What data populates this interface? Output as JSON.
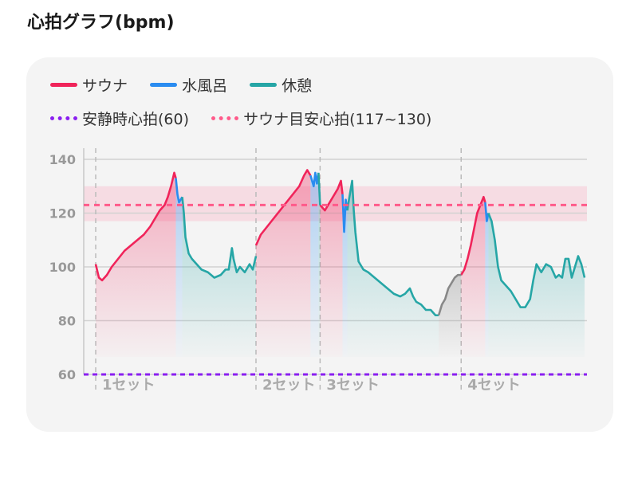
{
  "title": "心拍グラフ(bpm)",
  "legend": {
    "row1": [
      {
        "label": "サウナ",
        "color": "#f0245a"
      },
      {
        "label": "水風呂",
        "color": "#2a8cf0"
      },
      {
        "label": "休憩",
        "color": "#26a6a6"
      }
    ],
    "row2": [
      {
        "label": "安静時心拍(60)",
        "color": "#8a1ff0"
      },
      {
        "label": "サウナ目安心拍(117~130)",
        "color": "#ff5a8a"
      }
    ]
  },
  "chart_data": {
    "type": "line",
    "ylim": [
      60,
      140
    ],
    "yticks": [
      140,
      120,
      100,
      80,
      60
    ],
    "resting_hr": 60,
    "sauna_target_band": [
      117,
      130
    ],
    "sauna_target_line": 123,
    "grid": true,
    "set_labels": [
      "1セット",
      "2セット",
      "3セット",
      "4セット"
    ],
    "series": [
      {
        "name": "サウナ",
        "color": "#f0245a",
        "segments": [
          [
            [
              0,
              101
            ],
            [
              2,
              96
            ],
            [
              4,
              95
            ],
            [
              7,
              97
            ],
            [
              10,
              100
            ],
            [
              14,
              103
            ],
            [
              18,
              106
            ],
            [
              22,
              108
            ],
            [
              26,
              110
            ],
            [
              30,
              112
            ],
            [
              34,
              115
            ],
            [
              37,
              118
            ],
            [
              40,
              121
            ],
            [
              43,
              123
            ],
            [
              45,
              126
            ],
            [
              47,
              130
            ],
            [
              49,
              135
            ],
            [
              50,
              133
            ]
          ],
          [
            [
              100,
              108
            ],
            [
              103,
              112
            ],
            [
              107,
              115
            ],
            [
              111,
              118
            ],
            [
              115,
              121
            ],
            [
              119,
              124
            ],
            [
              123,
              127
            ],
            [
              127,
              130
            ],
            [
              130,
              134
            ],
            [
              132,
              136
            ],
            [
              134,
              134
            ]
          ],
          [
            [
              140,
              123
            ],
            [
              143,
              121
            ],
            [
              146,
              124
            ],
            [
              149,
              127
            ],
            [
              151,
              129
            ],
            [
              153,
              132
            ],
            [
              154,
              127
            ]
          ],
          [
            [
              228,
              97
            ],
            [
              230,
              99
            ],
            [
              232,
              103
            ],
            [
              234,
              108
            ],
            [
              236,
              114
            ],
            [
              238,
              120
            ],
            [
              240,
              123
            ],
            [
              242,
              126
            ],
            [
              243,
              124
            ]
          ]
        ]
      },
      {
        "name": "水風呂",
        "color": "#2a8cf0",
        "segments": [
          [
            [
              50,
              133
            ],
            [
              51,
              127
            ],
            [
              52,
              124
            ],
            [
              53,
              125
            ],
            [
              54,
              126
            ]
          ],
          [
            [
              134,
              134
            ],
            [
              136,
              130
            ],
            [
              137,
              135
            ],
            [
              138,
              131
            ],
            [
              139,
              135
            ]
          ],
          [
            [
              154,
              127
            ],
            [
              155,
              113
            ],
            [
              156,
              125
            ],
            [
              157,
              121
            ]
          ],
          [
            [
              243,
              124
            ],
            [
              244,
              117
            ],
            [
              245,
              120
            ]
          ]
        ]
      },
      {
        "name": "休憩",
        "color": "#26a6a6",
        "segments": [
          [
            [
              54,
              126
            ],
            [
              55,
              120
            ],
            [
              56,
              111
            ],
            [
              58,
              105
            ],
            [
              60,
              103
            ],
            [
              63,
              101
            ],
            [
              66,
              99
            ],
            [
              70,
              98
            ],
            [
              74,
              96
            ],
            [
              78,
              97
            ],
            [
              81,
              99
            ],
            [
              83,
              99
            ],
            [
              85,
              107
            ],
            [
              86,
              103
            ],
            [
              88,
              98
            ],
            [
              90,
              100
            ],
            [
              93,
              98
            ],
            [
              96,
              101
            ],
            [
              98,
              99
            ],
            [
              100,
              104
            ]
          ],
          [
            [
              139,
              135
            ],
            [
              140,
              123
            ]
          ],
          [
            [
              157,
              121
            ],
            [
              158,
              125
            ],
            [
              160,
              132
            ],
            [
              161,
              121
            ],
            [
              162,
              113
            ],
            [
              164,
              102
            ],
            [
              167,
              99
            ],
            [
              170,
              98
            ],
            [
              174,
              96
            ],
            [
              178,
              94
            ],
            [
              182,
              92
            ],
            [
              186,
              90
            ],
            [
              190,
              89
            ],
            [
              193,
              90
            ],
            [
              196,
              92
            ],
            [
              198,
              89
            ],
            [
              200,
              87
            ],
            [
              203,
              86
            ],
            [
              206,
              84
            ],
            [
              209,
              84
            ],
            [
              212,
              82
            ],
            [
              214,
              82
            ]
          ],
          [
            [
              245,
              120
            ],
            [
              247,
              117
            ],
            [
              249,
              110
            ],
            [
              251,
              100
            ],
            [
              253,
              95
            ],
            [
              256,
              93
            ],
            [
              259,
              91
            ],
            [
              262,
              88
            ],
            [
              265,
              85
            ],
            [
              268,
              85
            ],
            [
              271,
              88
            ],
            [
              273,
              95
            ],
            [
              275,
              101
            ],
            [
              278,
              98
            ],
            [
              281,
              101
            ],
            [
              284,
              100
            ],
            [
              287,
              96
            ],
            [
              289,
              97
            ],
            [
              291,
              96
            ],
            [
              293,
              103
            ],
            [
              295,
              103
            ],
            [
              297,
              96
            ],
            [
              299,
              100
            ],
            [
              301,
              104
            ],
            [
              303,
              101
            ],
            [
              305,
              96
            ]
          ]
        ]
      },
      {
        "name": "",
        "color": "#888888",
        "segments": [
          [
            [
              214,
              82
            ],
            [
              216,
              86
            ],
            [
              218,
              88
            ],
            [
              220,
              92
            ],
            [
              222,
              94
            ],
            [
              224,
              96
            ],
            [
              226,
              97
            ],
            [
              228,
              97
            ]
          ]
        ]
      }
    ]
  }
}
